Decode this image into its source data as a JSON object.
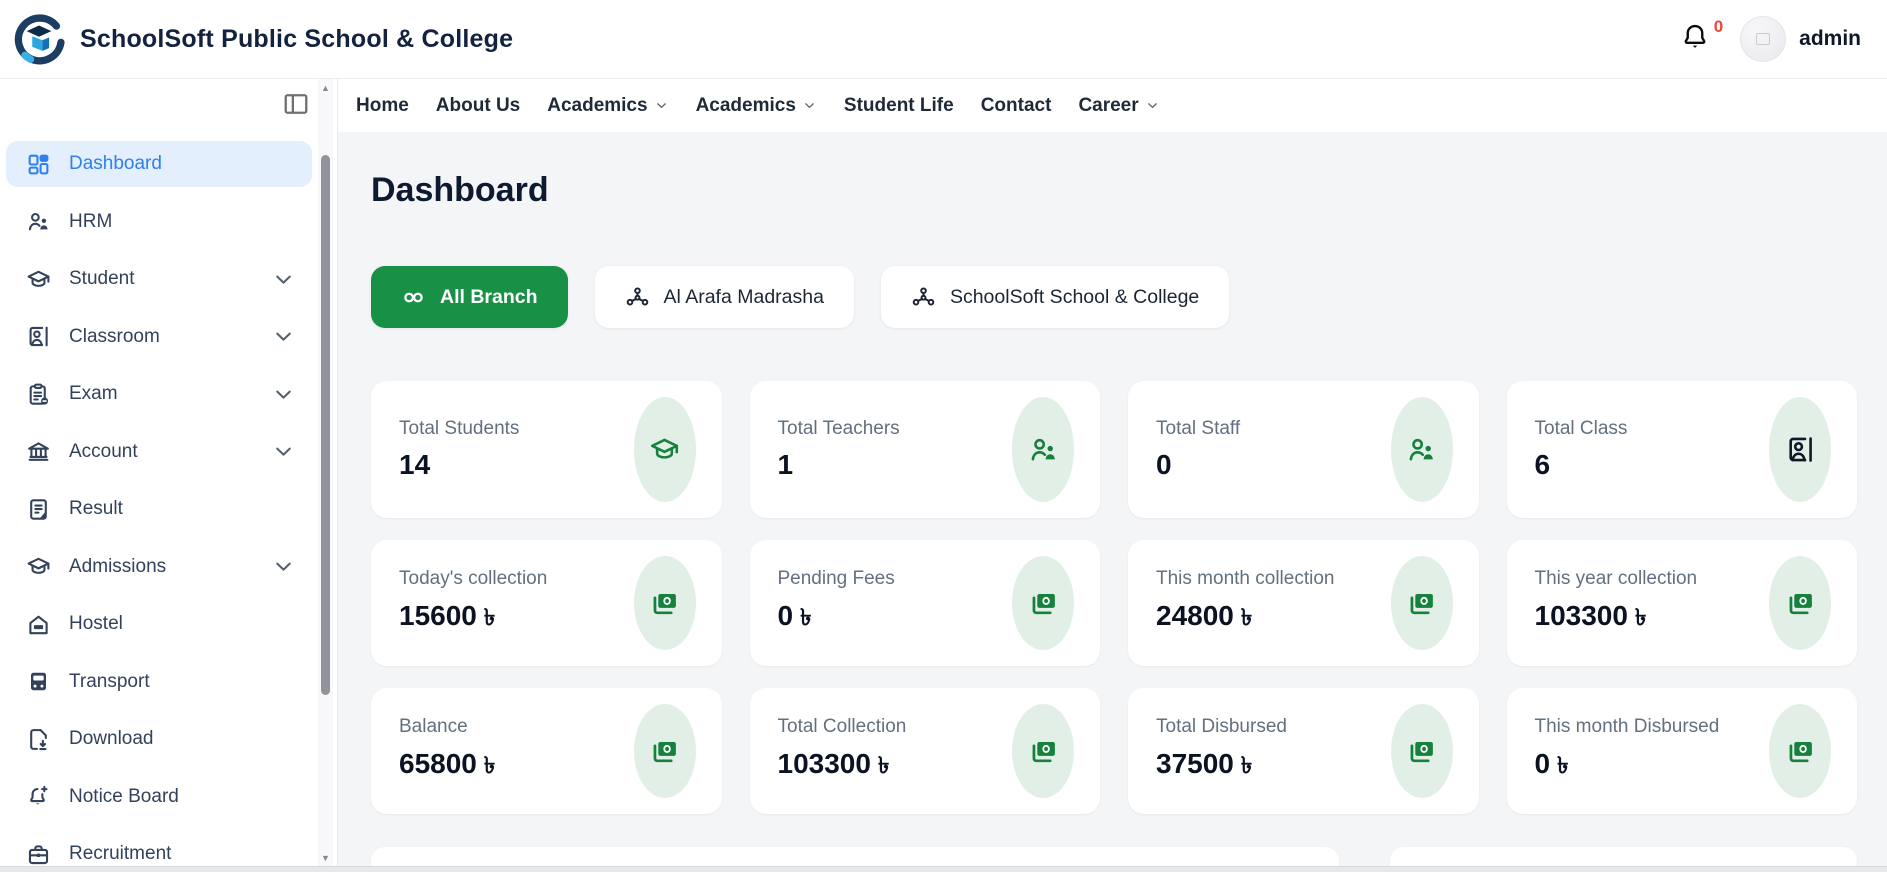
{
  "header": {
    "app_title": "SchoolSoft Public School & College",
    "notification_count": "0",
    "user_name": "admin"
  },
  "nav": {
    "items": [
      {
        "label": "Home",
        "dropdown": false
      },
      {
        "label": "About Us",
        "dropdown": false
      },
      {
        "label": "Academics",
        "dropdown": true
      },
      {
        "label": "Academics",
        "dropdown": true
      },
      {
        "label": "Student Life",
        "dropdown": false
      },
      {
        "label": "Contact",
        "dropdown": false
      },
      {
        "label": "Career",
        "dropdown": true
      }
    ]
  },
  "sidebar": {
    "items": [
      {
        "label": "Dashboard",
        "icon": "dashboard-grid-icon",
        "active": true,
        "chevron": false
      },
      {
        "label": "HRM",
        "icon": "people-icon",
        "active": false,
        "chevron": false
      },
      {
        "label": "Student",
        "icon": "graduation-cap-icon",
        "active": false,
        "chevron": true
      },
      {
        "label": "Classroom",
        "icon": "classroom-icon",
        "active": false,
        "chevron": true
      },
      {
        "label": "Exam",
        "icon": "clipboard-icon",
        "active": false,
        "chevron": true
      },
      {
        "label": "Account",
        "icon": "bank-icon",
        "active": false,
        "chevron": true
      },
      {
        "label": "Result",
        "icon": "document-icon",
        "active": false,
        "chevron": false
      },
      {
        "label": "Admissions",
        "icon": "graduation-cap-icon",
        "active": false,
        "chevron": true
      },
      {
        "label": "Hostel",
        "icon": "hostel-icon",
        "active": false,
        "chevron": false
      },
      {
        "label": "Transport",
        "icon": "bus-icon",
        "active": false,
        "chevron": false
      },
      {
        "label": "Download",
        "icon": "download-icon",
        "active": false,
        "chevron": false
      },
      {
        "label": "Notice Board",
        "icon": "notice-bell-icon",
        "active": false,
        "chevron": false
      },
      {
        "label": "Recruitment",
        "icon": "briefcase-icon",
        "active": false,
        "chevron": false
      }
    ]
  },
  "main": {
    "page_title": "Dashboard",
    "branches": [
      {
        "label": "All Branch",
        "icon": "infinity-icon",
        "active": true
      },
      {
        "label": "Al Arafa Madrasha",
        "icon": "branch-network-icon",
        "active": false
      },
      {
        "label": "SchoolSoft School & College",
        "icon": "branch-network-icon",
        "active": false
      }
    ],
    "stat_cards": [
      {
        "label": "Total Students",
        "value": "14",
        "currency": "",
        "icon": "graduation-cap-icon",
        "icon_color": "green"
      },
      {
        "label": "Total Teachers",
        "value": "1",
        "currency": "",
        "icon": "person-icon",
        "icon_color": "green"
      },
      {
        "label": "Total Staff",
        "value": "0",
        "currency": "",
        "icon": "person-icon",
        "icon_color": "green"
      },
      {
        "label": "Total Class",
        "value": "6",
        "currency": "",
        "icon": "classroom-icon",
        "icon_color": "dark"
      },
      {
        "label": "Today's collection",
        "value": "15600",
        "currency": "৳",
        "icon": "banknote-icon",
        "icon_color": "green"
      },
      {
        "label": "Pending Fees",
        "value": "0",
        "currency": "৳",
        "icon": "banknote-icon",
        "icon_color": "green"
      },
      {
        "label": "This month collection",
        "value": "24800",
        "currency": "৳",
        "icon": "banknote-icon",
        "icon_color": "green"
      },
      {
        "label": "This year collection",
        "value": "103300",
        "currency": "৳",
        "icon": "banknote-icon",
        "icon_color": "green"
      },
      {
        "label": "Balance",
        "value": "65800",
        "currency": "৳",
        "icon": "banknote-icon",
        "icon_color": "green"
      },
      {
        "label": "Total Collection",
        "value": "103300",
        "currency": "৳",
        "icon": "banknote-icon",
        "icon_color": "green"
      },
      {
        "label": "Total Disbursed",
        "value": "37500",
        "currency": "৳",
        "icon": "banknote-icon",
        "icon_color": "green"
      },
      {
        "label": "This month Disbursed",
        "value": "0",
        "currency": "৳",
        "icon": "banknote-icon",
        "icon_color": "green"
      }
    ]
  },
  "colors": {
    "accent_blue": "#2f80ed",
    "active_item_bg": "#e3effd",
    "brand_green": "#189147",
    "icon_green": "#15813c",
    "bubble_green": "#e2efe6",
    "badge_red": "#f04438",
    "content_bg": "#f4f5f7"
  }
}
